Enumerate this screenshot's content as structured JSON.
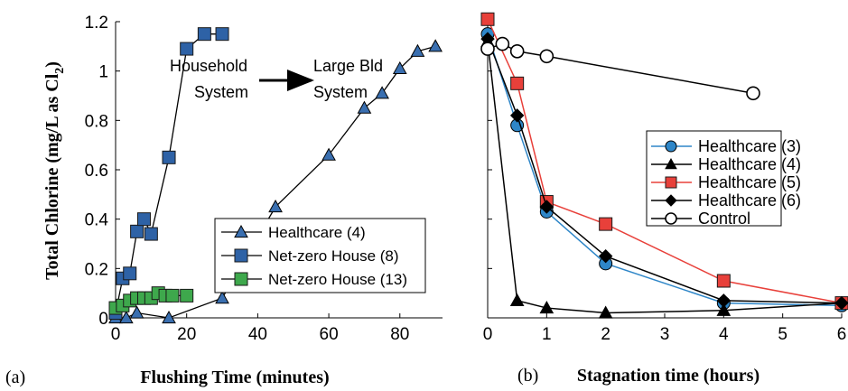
{
  "chart_data": [
    {
      "panel": "(a)",
      "type": "line",
      "xlabel": "Flushing Time (minutes)",
      "ylabel": "Total Chlorine (mg/L as Cl",
      "ylabel_sub": "2",
      "ylabel_close": ")",
      "xlim": [
        0,
        92
      ],
      "ylim": [
        0,
        1.2
      ],
      "xticks": [
        "0",
        "20",
        "40",
        "60",
        "80"
      ],
      "yticks": [
        "0",
        "0.2",
        "0.4",
        "0.6",
        "0.8",
        "1",
        "1.2"
      ],
      "annotations": {
        "left_line1": "Household",
        "left_line2": "System",
        "right_line1": "Large Bld",
        "right_line2": "System"
      },
      "series": [
        {
          "name": "Healthcare (4)",
          "marker": "triangle",
          "color": "#3a6fb0",
          "x": [
            0,
            3,
            6,
            15,
            30,
            45,
            60,
            70,
            75,
            80,
            85,
            90
          ],
          "y": [
            0,
            0,
            0.02,
            0,
            0.08,
            0.45,
            0.66,
            0.85,
            0.91,
            1.01,
            1.08,
            1.1
          ]
        },
        {
          "name": "Net-zero House (8)",
          "marker": "square",
          "color": "#2e62a6",
          "x": [
            0,
            2,
            4,
            6,
            8,
            10,
            15,
            20,
            25,
            30
          ],
          "y": [
            0.02,
            0.16,
            0.18,
            0.35,
            0.4,
            0.34,
            0.65,
            1.09,
            1.15,
            1.15
          ]
        },
        {
          "name": "Net-zero House (13)",
          "marker": "square",
          "color": "#3ea84c",
          "x": [
            0,
            2,
            4,
            6,
            8,
            10,
            12,
            14,
            16,
            20
          ],
          "y": [
            0.04,
            0.05,
            0.07,
            0.08,
            0.08,
            0.08,
            0.1,
            0.09,
            0.09,
            0.09
          ]
        }
      ]
    },
    {
      "panel": "(b)",
      "type": "line",
      "xlabel": "Stagnation time (hours)",
      "xlim": [
        0,
        6
      ],
      "ylim": [
        0,
        1.2
      ],
      "xticks": [
        "0",
        "1",
        "2",
        "3",
        "4",
        "5",
        "6"
      ],
      "series": [
        {
          "name": "Healthcare (3)",
          "marker": "circle",
          "color": "#2e86c8",
          "x": [
            0,
            0.5,
            1,
            2,
            4,
            6
          ],
          "y": [
            1.15,
            0.78,
            0.43,
            0.22,
            0.06,
            0.05
          ]
        },
        {
          "name": "Healthcare (4)",
          "marker": "triangle",
          "color": "#000000",
          "x": [
            0,
            0.5,
            1,
            2,
            4,
            6
          ],
          "y": [
            1.12,
            0.07,
            0.04,
            0.02,
            0.03,
            0.06
          ]
        },
        {
          "name": "Healthcare (5)",
          "marker": "square",
          "color": "#e8403a",
          "x": [
            0,
            0.5,
            1,
            2,
            4,
            6
          ],
          "y": [
            1.21,
            0.95,
            0.47,
            0.38,
            0.15,
            0.06
          ]
        },
        {
          "name": "Healthcare (6)",
          "marker": "diamond",
          "color": "#000000",
          "x": [
            0,
            0.5,
            1,
            2,
            4,
            6
          ],
          "y": [
            1.13,
            0.82,
            0.45,
            0.25,
            0.07,
            0.06
          ]
        },
        {
          "name": "Control",
          "marker": "open-circle",
          "color": "#000000",
          "x": [
            0,
            0.25,
            0.5,
            1,
            4.5
          ],
          "y": [
            1.09,
            1.11,
            1.08,
            1.06,
            0.91
          ]
        }
      ]
    }
  ]
}
